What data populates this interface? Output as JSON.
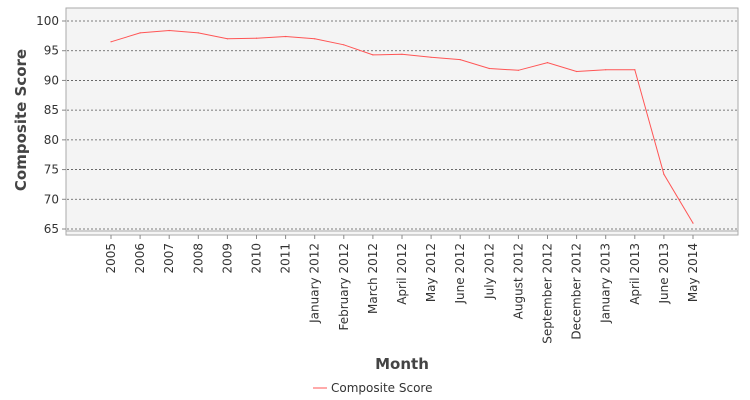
{
  "chart_data": {
    "type": "line",
    "title": "",
    "xlabel": "Month",
    "ylabel": "Composite Score",
    "categories": [
      "2005",
      "2006",
      "2007",
      "2008",
      "2009",
      "2010",
      "2011",
      "January 2012",
      "February 2012",
      "March 2012",
      "April 2012",
      "May 2012",
      "June 2012",
      "July 2012",
      "August 2012",
      "September 2012",
      "December 2012",
      "January 2013",
      "April 2013",
      "June 2013",
      "May 2014"
    ],
    "series": [
      {
        "name": "Composite Score",
        "color": "#ff5555",
        "values": [
          96.5,
          98.0,
          98.4,
          98.0,
          97.0,
          97.1,
          97.4,
          97.0,
          96.0,
          94.3,
          94.4,
          93.9,
          93.5,
          92.0,
          91.7,
          93.0,
          91.5,
          91.8,
          91.8,
          74.2,
          66.0
        ]
      }
    ],
    "ylim": [
      64.3,
      101.8
    ],
    "yticks": [
      65,
      70,
      75,
      80,
      85,
      90,
      95,
      100
    ],
    "ytick_labels": [
      "65",
      "70",
      "75",
      "80",
      "85",
      "90",
      "95",
      "100"
    ],
    "grid": true,
    "legend": "bottom-center",
    "plot_background": "#f4f4f4",
    "grid_color": "#555555"
  }
}
